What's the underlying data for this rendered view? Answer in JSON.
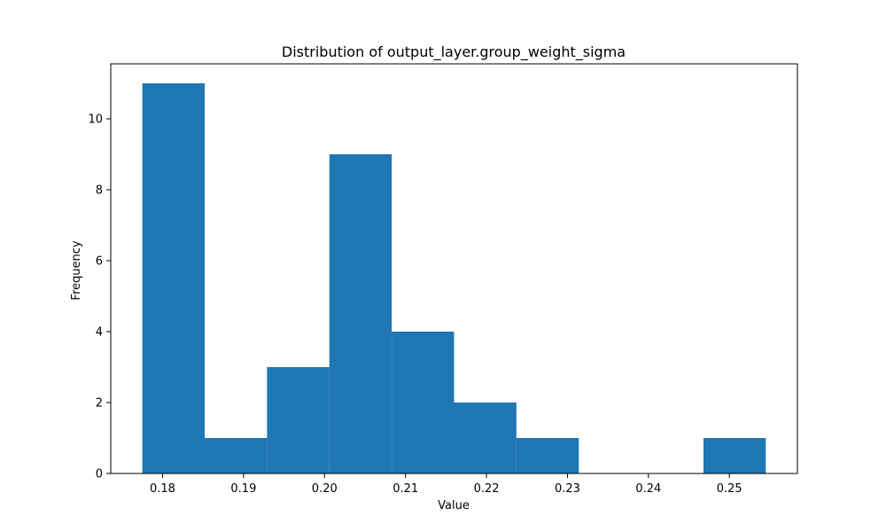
{
  "chart_data": {
    "type": "bar",
    "title": "Distribution of output_layer.group_weight_sigma",
    "xlabel": "Value",
    "ylabel": "Frequency",
    "bin_edges": [
      0.1775,
      0.1852,
      0.1929,
      0.2006,
      0.2083,
      0.216,
      0.2237,
      0.2314,
      0.2391,
      0.2468,
      0.2545
    ],
    "counts": [
      11,
      1,
      3,
      9,
      4,
      2,
      1,
      0,
      0,
      1
    ],
    "xlim": [
      0.1736,
      0.2584
    ],
    "ylim": [
      0,
      11.55
    ],
    "x_ticks": [
      0.18,
      0.19,
      0.2,
      0.21,
      0.22,
      0.23,
      0.24,
      0.25
    ],
    "x_tick_labels": [
      "0.18",
      "0.19",
      "0.20",
      "0.21",
      "0.22",
      "0.23",
      "0.24",
      "0.25"
    ],
    "y_ticks": [
      0,
      2,
      4,
      6,
      8,
      10
    ],
    "y_tick_labels": [
      "0",
      "2",
      "4",
      "6",
      "8",
      "10"
    ],
    "bar_color": "#1f77b4",
    "grid": false,
    "legend": "none"
  }
}
